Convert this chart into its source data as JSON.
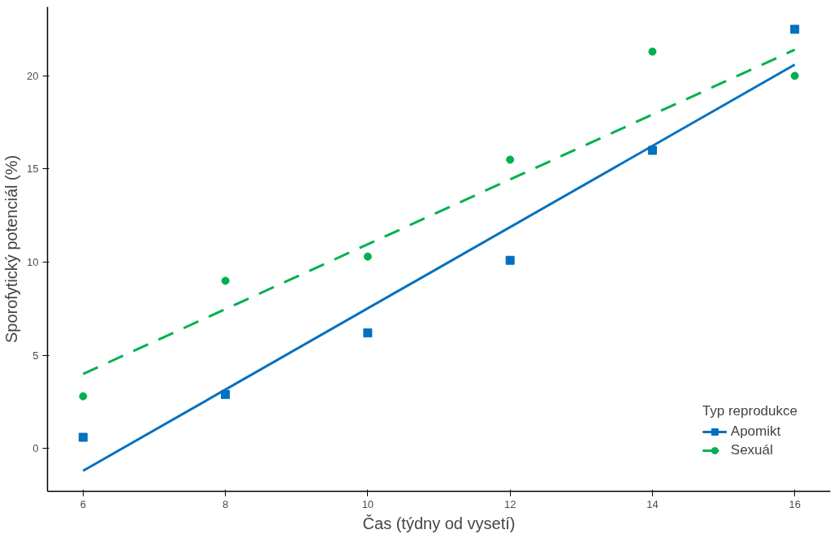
{
  "chart_data": {
    "type": "scatter",
    "xlabel": "Čas (týdny od vysetí)",
    "ylabel": "Sporofytický potenciál (%)",
    "legend_title": "Typ reprodukce",
    "xlim": [
      5.5,
      16.5
    ],
    "ylim": [
      -2.3,
      23.7
    ],
    "xticks": [
      6,
      8,
      10,
      12,
      14,
      16
    ],
    "yticks": [
      0,
      5,
      10,
      15,
      20
    ],
    "grid": false,
    "legend": "bottom right",
    "series": [
      {
        "name": "Apomikt",
        "marker": "square",
        "color": "#0070c0",
        "x": [
          6,
          8,
          10,
          12,
          14,
          16
        ],
        "values": [
          0.6,
          2.9,
          6.2,
          10.1,
          16.0,
          22.5
        ]
      },
      {
        "name": "Sexuál",
        "marker": "circle",
        "color": "#00b050",
        "x": [
          6,
          8,
          10,
          12,
          14,
          16
        ],
        "values": [
          2.8,
          9.0,
          10.3,
          15.5,
          21.3,
          20.0
        ]
      },
      {
        "type": "line",
        "line_style": "solid",
        "color": "#0070c0",
        "x": [
          6,
          16
        ],
        "values": [
          -1.2,
          20.6
        ]
      },
      {
        "type": "line",
        "line_style": "dashed",
        "color": "#00b050",
        "x": [
          6,
          16
        ],
        "values": [
          4.0,
          21.4
        ]
      }
    ]
  }
}
